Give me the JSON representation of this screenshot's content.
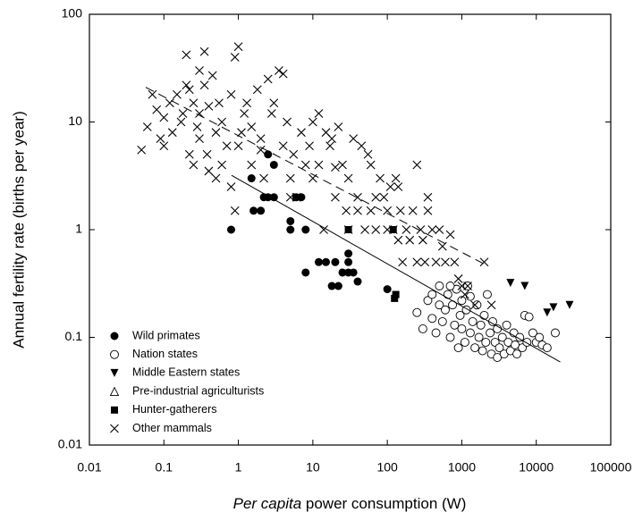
{
  "chart_data": {
    "type": "scatter",
    "xlabel_italic": "Per capita",
    "xlabel": " power consumption (W)",
    "ylabel": "Annual fertility rate (births per year)",
    "xscale": "log",
    "yscale": "log",
    "xlim": [
      0.01,
      100000
    ],
    "ylim": [
      0.01,
      100
    ],
    "xticks": [
      0.01,
      0.1,
      1,
      10,
      100,
      1000,
      10000,
      100000
    ],
    "yticks": [
      0.01,
      0.1,
      1,
      10,
      100
    ],
    "legend": "lower left",
    "series": [
      {
        "name": "Wild primates",
        "marker": "circle-filled",
        "color": "#000000",
        "x": [
          0.8,
          1.5,
          1.6,
          2,
          2.2,
          2.5,
          2.5,
          3,
          3,
          5,
          5,
          6,
          7,
          8,
          8,
          12,
          15,
          18,
          20,
          22,
          25,
          30,
          30,
          30,
          35,
          40,
          100
        ],
        "y": [
          1,
          3,
          1.5,
          1.5,
          2,
          5,
          2,
          4,
          2,
          1,
          1.2,
          2,
          2,
          1,
          0.4,
          0.5,
          0.5,
          0.3,
          0.5,
          0.3,
          0.4,
          0.4,
          0.5,
          0.6,
          0.4,
          0.33,
          0.28
        ]
      },
      {
        "name": "Nation states",
        "marker": "circle-open",
        "color": "#000000",
        "x": [
          250,
          300,
          350,
          400,
          400,
          450,
          500,
          500,
          550,
          600,
          650,
          700,
          750,
          800,
          850,
          900,
          950,
          1000,
          1000,
          1100,
          1150,
          1200,
          1300,
          1400,
          1500,
          1600,
          1700,
          1800,
          1900,
          2000,
          2100,
          2200,
          2400,
          2500,
          2600,
          2800,
          3000,
          3000,
          3200,
          3500,
          3700,
          4000,
          4200,
          4500,
          5000,
          5200,
          5500,
          6000,
          6500,
          7000,
          7500,
          8000,
          9000,
          10000,
          11000,
          12000,
          14000,
          18000,
          1300,
          700
        ],
        "y": [
          0.17,
          0.12,
          0.22,
          0.25,
          0.15,
          0.11,
          0.2,
          0.3,
          0.14,
          0.18,
          0.25,
          0.1,
          0.2,
          0.13,
          0.28,
          0.08,
          0.16,
          0.22,
          0.12,
          0.09,
          0.18,
          0.3,
          0.11,
          0.14,
          0.08,
          0.2,
          0.1,
          0.13,
          0.075,
          0.16,
          0.09,
          0.25,
          0.11,
          0.07,
          0.14,
          0.09,
          0.065,
          0.12,
          0.08,
          0.1,
          0.07,
          0.13,
          0.09,
          0.075,
          0.11,
          0.085,
          0.07,
          0.1,
          0.08,
          0.16,
          0.09,
          0.155,
          0.11,
          0.09,
          0.1,
          0.085,
          0.08,
          0.11,
          0.24,
          0.3
        ]
      },
      {
        "name": "Middle Eastern states",
        "marker": "triangle-down-filled",
        "color": "#000000",
        "x": [
          4500,
          7000,
          14000,
          17000,
          28000
        ],
        "y": [
          0.32,
          0.3,
          0.17,
          0.19,
          0.2
        ]
      },
      {
        "name": "Pre-industrial agriculturists",
        "marker": "triangle-open",
        "color": "#000000",
        "x": [],
        "y": []
      },
      {
        "name": "Hunter-gatherers",
        "marker": "square-filled",
        "color": "#000000",
        "x": [
          30,
          120,
          130,
          125
        ],
        "y": [
          1,
          1,
          0.25,
          0.23
        ]
      },
      {
        "name": "Other mammals",
        "marker": "cross",
        "color": "#000000",
        "x": [
          0.05,
          0.06,
          0.07,
          0.08,
          0.09,
          0.1,
          0.1,
          0.12,
          0.13,
          0.15,
          0.17,
          0.18,
          0.2,
          0.2,
          0.22,
          0.22,
          0.25,
          0.25,
          0.28,
          0.3,
          0.3,
          0.3,
          0.35,
          0.35,
          0.38,
          0.4,
          0.4,
          0.45,
          0.5,
          0.5,
          0.55,
          0.6,
          0.6,
          0.7,
          0.8,
          0.8,
          0.9,
          0.9,
          1,
          1,
          1.1,
          1.2,
          1.3,
          1.5,
          1.5,
          1.8,
          2,
          2,
          2.2,
          2.5,
          2.8,
          3,
          3.5,
          4,
          4,
          4.5,
          5,
          5,
          5.5,
          6,
          7,
          8,
          9,
          10,
          10,
          12,
          12,
          14,
          15,
          17,
          18,
          20,
          20,
          22,
          25,
          28,
          30,
          30,
          35,
          40,
          40,
          45,
          50,
          55,
          60,
          70,
          70,
          80,
          90,
          100,
          100,
          110,
          120,
          130,
          140,
          150,
          160,
          180,
          200,
          220,
          250,
          250,
          280,
          300,
          320,
          350,
          400,
          450,
          500,
          550,
          600,
          700,
          800,
          900,
          1000,
          1100,
          1200,
          1500,
          2000,
          2500,
          350,
          140,
          60
        ],
        "y": [
          5.5,
          9,
          18,
          13,
          7,
          6,
          11,
          15,
          8,
          18,
          10,
          12,
          42,
          22,
          20,
          5,
          4,
          15,
          9,
          30,
          7,
          12,
          45,
          22,
          5,
          14,
          3.5,
          27,
          8,
          3,
          15,
          10,
          4,
          6,
          2.5,
          18,
          40,
          1.5,
          50,
          6,
          8,
          12,
          15,
          4,
          9,
          20,
          7,
          5.5,
          3,
          25,
          12,
          15,
          30,
          28,
          6,
          10,
          3,
          2,
          5,
          2,
          8,
          4,
          6,
          3,
          10,
          12,
          4,
          1,
          8,
          6,
          7,
          3.8,
          2,
          9,
          4,
          1.5,
          1,
          3,
          7,
          2,
          1.5,
          6,
          1,
          5,
          1.5,
          2,
          1,
          3,
          2,
          1.5,
          1,
          2.5,
          1,
          3,
          0.8,
          1.5,
          0.5,
          1,
          0.8,
          1.5,
          4,
          0.5,
          1,
          0.8,
          0.5,
          2,
          1,
          0.5,
          1,
          0.7,
          0.5,
          0.9,
          0.5,
          0.35,
          0.3,
          0.25,
          0.3,
          0.2,
          0.5,
          0.2,
          1.5,
          2.5,
          4
        ]
      }
    ],
    "fits": [
      {
        "style": "solid",
        "x": [
          0.81,
          21000
        ],
        "y": [
          3.2,
          0.059
        ]
      },
      {
        "style": "dashed",
        "x": [
          0.057,
          2000
        ],
        "y": [
          21,
          0.48
        ]
      }
    ]
  }
}
